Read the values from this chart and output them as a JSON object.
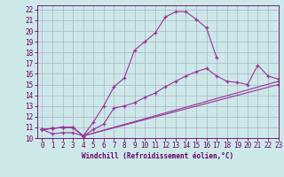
{
  "bg_color": "#cce8e8",
  "grid_color": "#b0b0cc",
  "line_color": "#993399",
  "xlim": [
    -0.5,
    23
  ],
  "ylim": [
    10,
    22.4
  ],
  "yticks": [
    10,
    11,
    12,
    13,
    14,
    15,
    16,
    17,
    18,
    19,
    20,
    21,
    22
  ],
  "xticks": [
    0,
    1,
    2,
    3,
    4,
    5,
    6,
    7,
    8,
    9,
    10,
    11,
    12,
    13,
    14,
    15,
    16,
    17,
    18,
    19,
    20,
    21,
    22,
    23
  ],
  "xlabel": "Windchill (Refroidissement éolien,°C)",
  "line1_x": [
    0,
    1,
    2,
    3,
    4,
    5,
    6,
    7,
    8,
    9,
    10,
    11,
    12,
    13,
    14,
    15,
    16,
    17
  ],
  "line1_y": [
    10.8,
    10.4,
    10.5,
    10.5,
    10.2,
    11.5,
    13.0,
    14.8,
    15.6,
    18.2,
    19.0,
    19.8,
    21.3,
    21.8,
    21.8,
    21.1,
    20.3,
    17.5
  ],
  "line2_x": [
    0,
    1,
    2,
    3,
    4,
    5,
    6,
    7,
    8,
    9,
    10,
    11,
    12,
    13,
    14,
    15,
    16,
    17,
    18,
    19,
    20,
    21,
    22,
    23
  ],
  "line2_y": [
    10.8,
    10.9,
    11.0,
    11.0,
    10.2,
    10.8,
    11.3,
    12.8,
    13.0,
    13.3,
    13.8,
    14.2,
    14.8,
    15.3,
    15.8,
    16.2,
    16.5,
    15.8,
    15.3,
    15.2,
    15.0,
    16.8,
    15.8,
    15.5
  ],
  "line3_x": [
    0,
    1,
    2,
    3,
    4,
    23
  ],
  "line3_y": [
    10.8,
    10.9,
    11.0,
    11.0,
    10.2,
    15.3
  ],
  "line4_x": [
    0,
    1,
    2,
    3,
    4,
    23
  ],
  "line4_y": [
    10.8,
    10.9,
    11.0,
    11.0,
    10.2,
    15.0
  ]
}
